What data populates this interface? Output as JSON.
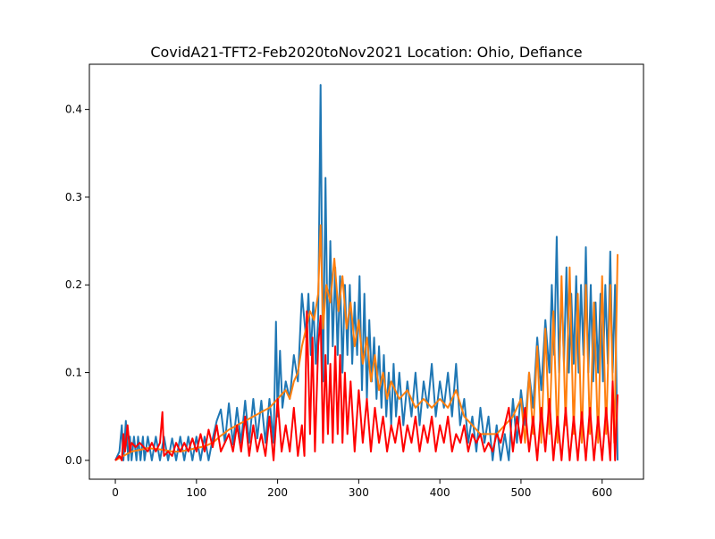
{
  "chart_data": {
    "type": "line",
    "title": "CovidA21-TFT2-Feb2020toNov2021 Location: Ohio, Defiance",
    "xlabel": "",
    "ylabel": "",
    "xlim": [
      -32,
      651
    ],
    "ylim": [
      -0.0215,
      0.4515
    ],
    "xticks": [
      0,
      100,
      200,
      300,
      400,
      500,
      600
    ],
    "xtick_labels": [
      "0",
      "100",
      "200",
      "300",
      "400",
      "500",
      "600"
    ],
    "yticks": [
      0.0,
      0.1,
      0.2,
      0.3,
      0.4
    ],
    "ytick_labels": [
      "0.0",
      "0.1",
      "0.2",
      "0.3",
      "0.4"
    ],
    "grid": false,
    "legend": "none",
    "series": [
      {
        "color": "#1f77b4",
        "x": [
          0,
          5,
          8,
          10,
          13,
          16,
          18,
          20,
          23,
          26,
          28,
          31,
          34,
          36,
          40,
          45,
          50,
          55,
          60,
          65,
          70,
          75,
          80,
          85,
          90,
          95,
          100,
          105,
          110,
          115,
          120,
          125,
          130,
          135,
          140,
          145,
          150,
          155,
          160,
          165,
          170,
          175,
          180,
          185,
          190,
          195,
          198,
          200,
          203,
          206,
          210,
          215,
          220,
          225,
          230,
          235,
          238,
          241,
          244,
          247,
          250,
          253,
          256,
          259,
          262,
          265,
          268,
          271,
          274,
          277,
          280,
          283,
          286,
          289,
          292,
          295,
          298,
          301,
          304,
          307,
          310,
          313,
          316,
          319,
          322,
          325,
          328,
          331,
          334,
          337,
          340,
          343,
          346,
          350,
          355,
          360,
          365,
          370,
          375,
          380,
          385,
          390,
          395,
          400,
          405,
          410,
          415,
          420,
          425,
          430,
          435,
          440,
          445,
          450,
          455,
          460,
          465,
          470,
          475,
          480,
          485,
          490,
          495,
          500,
          505,
          510,
          515,
          520,
          525,
          530,
          535,
          538,
          541,
          544,
          547,
          550,
          553,
          556,
          559,
          562,
          565,
          568,
          571,
          574,
          577,
          580,
          583,
          586,
          589,
          592,
          595,
          598,
          601,
          604,
          607,
          610,
          613,
          616,
          619
        ],
        "y": [
          0,
          0.01,
          0.04,
          0,
          0.045,
          0,
          0.027,
          0,
          0.027,
          0,
          0.027,
          0,
          0.027,
          0,
          0.027,
          0,
          0.027,
          0,
          0.027,
          0,
          0.025,
          0,
          0.027,
          0,
          0.027,
          0,
          0.027,
          0,
          0.027,
          0,
          0.025,
          0.045,
          0.058,
          0.02,
          0.065,
          0.018,
          0.06,
          0.02,
          0.068,
          0.02,
          0.07,
          0.025,
          0.068,
          0.02,
          0.07,
          0.02,
          0.158,
          0.05,
          0.125,
          0.06,
          0.09,
          0.07,
          0.12,
          0.09,
          0.19,
          0.14,
          0.19,
          0.12,
          0.18,
          0.11,
          0.16,
          0.428,
          0.09,
          0.322,
          0.11,
          0.25,
          0.13,
          0.22,
          0.12,
          0.21,
          0.1,
          0.2,
          0.12,
          0.2,
          0.11,
          0.18,
          0.12,
          0.21,
          0.08,
          0.19,
          0.07,
          0.16,
          0.09,
          0.14,
          0.07,
          0.13,
          0.06,
          0.12,
          0.05,
          0.1,
          0.04,
          0.11,
          0.05,
          0.1,
          0.04,
          0.09,
          0.05,
          0.1,
          0.04,
          0.09,
          0.06,
          0.11,
          0.05,
          0.09,
          0.06,
          0.1,
          0.05,
          0.11,
          0.04,
          0.07,
          0.02,
          0.05,
          0.01,
          0.06,
          0.02,
          0.05,
          0,
          0.04,
          0,
          0.03,
          0,
          0.07,
          0.02,
          0.08,
          0.04,
          0.1,
          0.06,
          0.14,
          0.08,
          0.16,
          0.1,
          0.2,
          0.12,
          0.255,
          0.1,
          0.2,
          0.11,
          0.22,
          0.1,
          0.19,
          0.11,
          0.21,
          0.1,
          0.2,
          0.12,
          0.243,
          0.1,
          0.2,
          0.09,
          0.18,
          0.1,
          0.19,
          0.09,
          0.2,
          0.11,
          0.238,
          0.1,
          0.2,
          0
        ]
      },
      {
        "color": "#ff7f0e",
        "x": [
          0,
          10,
          20,
          30,
          40,
          50,
          60,
          70,
          80,
          90,
          100,
          110,
          120,
          130,
          140,
          150,
          160,
          170,
          180,
          190,
          195,
          200,
          205,
          210,
          215,
          220,
          225,
          230,
          235,
          240,
          245,
          250,
          253,
          256,
          260,
          265,
          270,
          275,
          280,
          285,
          290,
          295,
          300,
          305,
          310,
          315,
          320,
          325,
          330,
          335,
          340,
          350,
          360,
          370,
          380,
          390,
          400,
          410,
          420,
          430,
          440,
          450,
          460,
          470,
          480,
          490,
          500,
          505,
          510,
          515,
          520,
          525,
          530,
          535,
          540,
          545,
          550,
          555,
          560,
          565,
          570,
          575,
          580,
          585,
          590,
          595,
          600,
          605,
          610,
          615,
          619
        ],
        "y": [
          0,
          0.005,
          0.01,
          0.012,
          0.014,
          0.013,
          0.012,
          0.01,
          0.01,
          0.012,
          0.014,
          0.016,
          0.02,
          0.028,
          0.035,
          0.04,
          0.045,
          0.05,
          0.055,
          0.06,
          0.065,
          0.07,
          0.075,
          0.08,
          0.07,
          0.09,
          0.1,
          0.13,
          0.15,
          0.17,
          0.16,
          0.19,
          0.268,
          0.15,
          0.2,
          0.18,
          0.23,
          0.17,
          0.21,
          0.15,
          0.18,
          0.13,
          0.16,
          0.11,
          0.14,
          0.09,
          0.12,
          0.08,
          0.1,
          0.07,
          0.09,
          0.07,
          0.08,
          0.06,
          0.07,
          0.06,
          0.07,
          0.06,
          0.08,
          0.05,
          0.04,
          0.03,
          0.03,
          0.03,
          0.04,
          0.05,
          0.07,
          0.02,
          0.1,
          0.03,
          0.13,
          0.02,
          0.15,
          0.03,
          0.17,
          0.02,
          0.21,
          0.04,
          0.22,
          0.03,
          0.19,
          0.02,
          0.2,
          0.03,
          0.18,
          0.02,
          0.21,
          0.03,
          0.2,
          0.02,
          0.235
        ]
      },
      {
        "color": "#ff0000",
        "x": [
          0,
          5,
          8,
          10,
          12,
          15,
          18,
          20,
          25,
          30,
          35,
          40,
          45,
          50,
          55,
          58,
          60,
          65,
          70,
          75,
          80,
          85,
          90,
          95,
          100,
          105,
          110,
          115,
          120,
          125,
          130,
          135,
          140,
          145,
          150,
          155,
          160,
          165,
          170,
          175,
          180,
          185,
          190,
          195,
          200,
          205,
          210,
          215,
          220,
          225,
          230,
          233,
          236,
          240,
          243,
          246,
          250,
          253,
          256,
          259,
          262,
          265,
          268,
          271,
          274,
          277,
          280,
          283,
          286,
          290,
          295,
          300,
          305,
          310,
          315,
          320,
          325,
          330,
          335,
          340,
          345,
          350,
          355,
          360,
          365,
          370,
          375,
          380,
          385,
          390,
          395,
          400,
          405,
          410,
          415,
          420,
          425,
          430,
          435,
          440,
          445,
          450,
          455,
          460,
          465,
          470,
          475,
          480,
          485,
          490,
          495,
          500,
          505,
          510,
          515,
          520,
          525,
          530,
          535,
          540,
          545,
          550,
          555,
          560,
          565,
          570,
          575,
          580,
          585,
          590,
          595,
          600,
          605,
          610,
          613,
          616,
          619
        ],
        "y": [
          0,
          0.005,
          0,
          0.03,
          0.01,
          0.04,
          0.01,
          0.02,
          0.015,
          0.02,
          0.015,
          0.01,
          0.02,
          0.01,
          0.02,
          0.055,
          0.005,
          0.01,
          0.005,
          0.02,
          0.01,
          0.02,
          0.01,
          0.025,
          0.01,
          0.03,
          0.01,
          0.035,
          0.015,
          0.04,
          0.01,
          0.02,
          0.03,
          0.01,
          0.04,
          0.01,
          0.05,
          0.005,
          0.04,
          0.01,
          0.03,
          0.005,
          0.05,
          0,
          0.07,
          0.01,
          0.04,
          0.01,
          0.06,
          0.005,
          0.04,
          0.005,
          0.17,
          0.03,
          0.14,
          0.01,
          0.13,
          0.165,
          0.02,
          0.12,
          0.03,
          0.11,
          0.02,
          0.13,
          0.03,
          0.12,
          0.02,
          0.1,
          0.03,
          0.09,
          0.01,
          0.08,
          0.02,
          0.07,
          0.01,
          0.06,
          0.02,
          0.05,
          0.01,
          0.04,
          0.02,
          0.05,
          0.01,
          0.04,
          0.02,
          0.05,
          0.01,
          0.04,
          0.02,
          0.05,
          0.01,
          0.04,
          0.02,
          0.05,
          0.01,
          0.03,
          0.02,
          0.04,
          0.01,
          0.03,
          0.02,
          0.03,
          0.01,
          0.02,
          0.01,
          0.03,
          0.02,
          0.04,
          0.06,
          0.01,
          0.05,
          0.02,
          0.06,
          0.01,
          0.05,
          0,
          0.06,
          0.01,
          0.07,
          0,
          0.05,
          0,
          0.06,
          0,
          0.05,
          0,
          0.055,
          0,
          0.06,
          0,
          0.05,
          0,
          0.06,
          0,
          0.09,
          0,
          0.075
        ]
      }
    ]
  }
}
